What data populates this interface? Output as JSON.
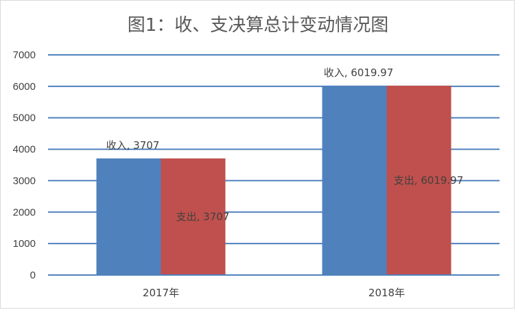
{
  "chart_data": {
    "type": "bar",
    "title": "图1：收、支决算总计变动情况图",
    "categories": [
      "2017年",
      "2018年"
    ],
    "series": [
      {
        "name": "收入",
        "values": [
          3707,
          6019.97
        ],
        "color": "#4f81bd"
      },
      {
        "name": "支出",
        "values": [
          3707,
          6019.97
        ],
        "color": "#c0504d"
      }
    ],
    "data_labels": [
      [
        "收入, 3707",
        "收入, 6019.97"
      ],
      [
        "支出, 3707",
        "支出, 6019.97"
      ]
    ],
    "ylim": [
      0,
      7000
    ],
    "yticks": [
      0,
      1000,
      2000,
      3000,
      4000,
      5000,
      6000,
      7000
    ],
    "grid": true,
    "gridline_color": "#4f81bd",
    "legend": "none"
  }
}
